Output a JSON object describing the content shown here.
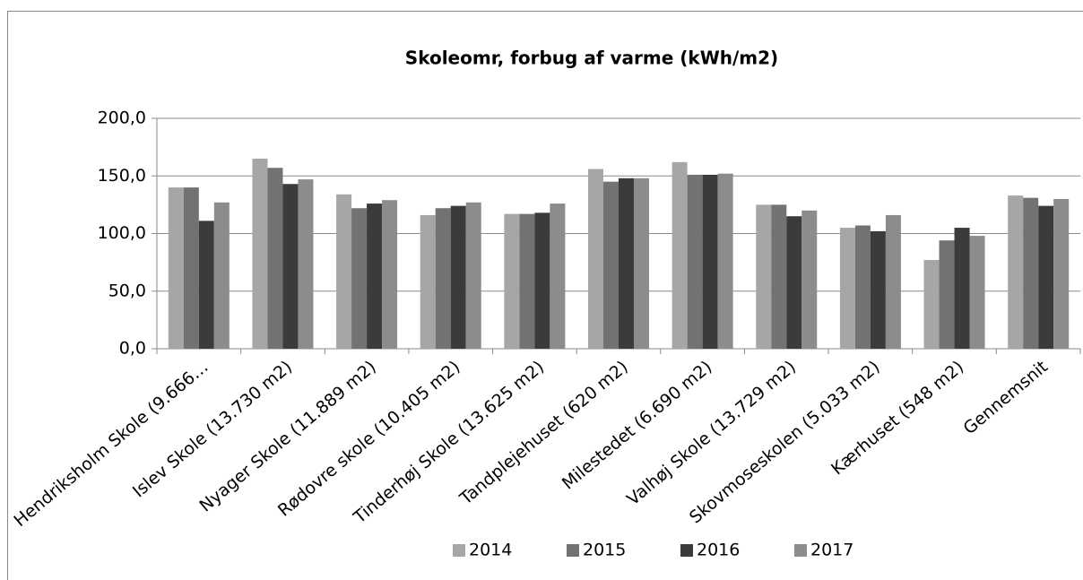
{
  "chart_data": {
    "type": "bar",
    "title": "Skoleomr, forbug af varme (kWh/m2)",
    "categories": [
      "Hendriksholm Skole (9.666…",
      "Islev Skole (13.730 m2)",
      "Nyager Skole (11.889 m2)",
      "Rødovre skole (10.405 m2)",
      "Tinderhøj Skole (13.625 m2)",
      "Tandplejehuset (620 m2)",
      "Milestedet (6.690 m2)",
      "Valhøj Skole (13.729 m2)",
      "Skovmoseskolen (5.033 m2)",
      "Kærhuset (548 m2)",
      "Gennemsnit"
    ],
    "series": [
      {
        "name": "2014",
        "color": "#a6a6a6",
        "values": [
          140,
          165,
          134,
          116,
          117,
          156,
          162,
          125,
          105,
          77,
          133
        ]
      },
      {
        "name": "2015",
        "color": "#727272",
        "values": [
          140,
          157,
          122,
          122,
          117,
          145,
          151,
          125,
          107,
          94,
          131
        ]
      },
      {
        "name": "2016",
        "color": "#3b3b3b",
        "values": [
          111,
          143,
          126,
          124,
          118,
          148,
          151,
          115,
          102,
          105,
          124
        ]
      },
      {
        "name": "2017",
        "color": "#8c8c8c",
        "values": [
          127,
          147,
          129,
          127,
          126,
          148,
          152,
          120,
          116,
          98,
          130
        ]
      }
    ],
    "ylim": [
      0,
      200
    ],
    "yticks": [
      {
        "value": 0,
        "label": "0,0"
      },
      {
        "value": 50,
        "label": "50,0"
      },
      {
        "value": 100,
        "label": "100,0"
      },
      {
        "value": 150,
        "label": "150,0"
      },
      {
        "value": 200,
        "label": "200,0"
      }
    ],
    "grid": true,
    "legend": "bottom"
  }
}
